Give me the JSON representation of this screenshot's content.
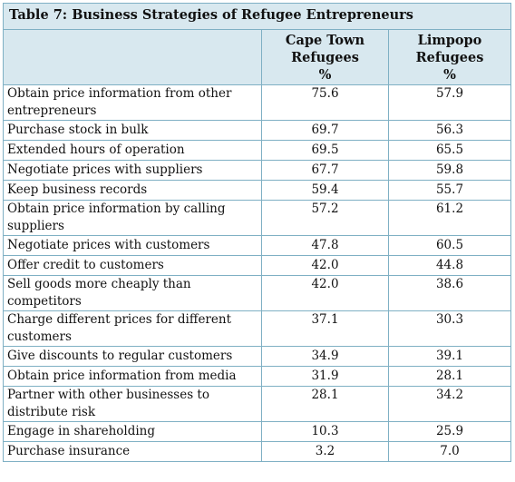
{
  "table": {
    "title": "Table 7: Business Strategies of Refugee Entrepreneurs",
    "columns": [
      {
        "line1": "Cape Town",
        "line2": "Refugees",
        "line3": "%"
      },
      {
        "line1": "Limpopo",
        "line2": "Refugees",
        "line3": "%"
      }
    ],
    "rows": [
      {
        "strategy": "Obtain price information from other entrepreneurs",
        "cape_town": "75.6",
        "limpopo": "57.9"
      },
      {
        "strategy": "Purchase stock in bulk",
        "cape_town": "69.7",
        "limpopo": "56.3"
      },
      {
        "strategy": "Extended hours of operation",
        "cape_town": "69.5",
        "limpopo": "65.5"
      },
      {
        "strategy": "Negotiate prices with suppliers",
        "cape_town": "67.7",
        "limpopo": "59.8"
      },
      {
        "strategy": "Keep business records",
        "cape_town": "59.4",
        "limpopo": "55.7"
      },
      {
        "strategy": "Obtain price information by calling suppliers",
        "cape_town": "57.2",
        "limpopo": "61.2"
      },
      {
        "strategy": "Negotiate prices with customers",
        "cape_town": "47.8",
        "limpopo": "60.5"
      },
      {
        "strategy": "Offer credit to customers",
        "cape_town": "42.0",
        "limpopo": "44.8"
      },
      {
        "strategy": "Sell goods more cheaply than competitors",
        "cape_town": "42.0",
        "limpopo": "38.6"
      },
      {
        "strategy": "Charge different prices for different customers",
        "cape_town": "37.1",
        "limpopo": "30.3"
      },
      {
        "strategy": "Give discounts to regular customers",
        "cape_town": "34.9",
        "limpopo": "39.1"
      },
      {
        "strategy": "Obtain price information from media",
        "cape_town": "31.9",
        "limpopo": "28.1"
      },
      {
        "strategy": "Partner with other businesses to distribute risk",
        "cape_town": "28.1",
        "limpopo": "34.2"
      },
      {
        "strategy": "Engage in shareholding",
        "cape_town": "10.3",
        "limpopo": "25.9"
      },
      {
        "strategy": "Purchase insurance",
        "cape_town": "3.2",
        "limpopo": "7.0"
      }
    ]
  }
}
